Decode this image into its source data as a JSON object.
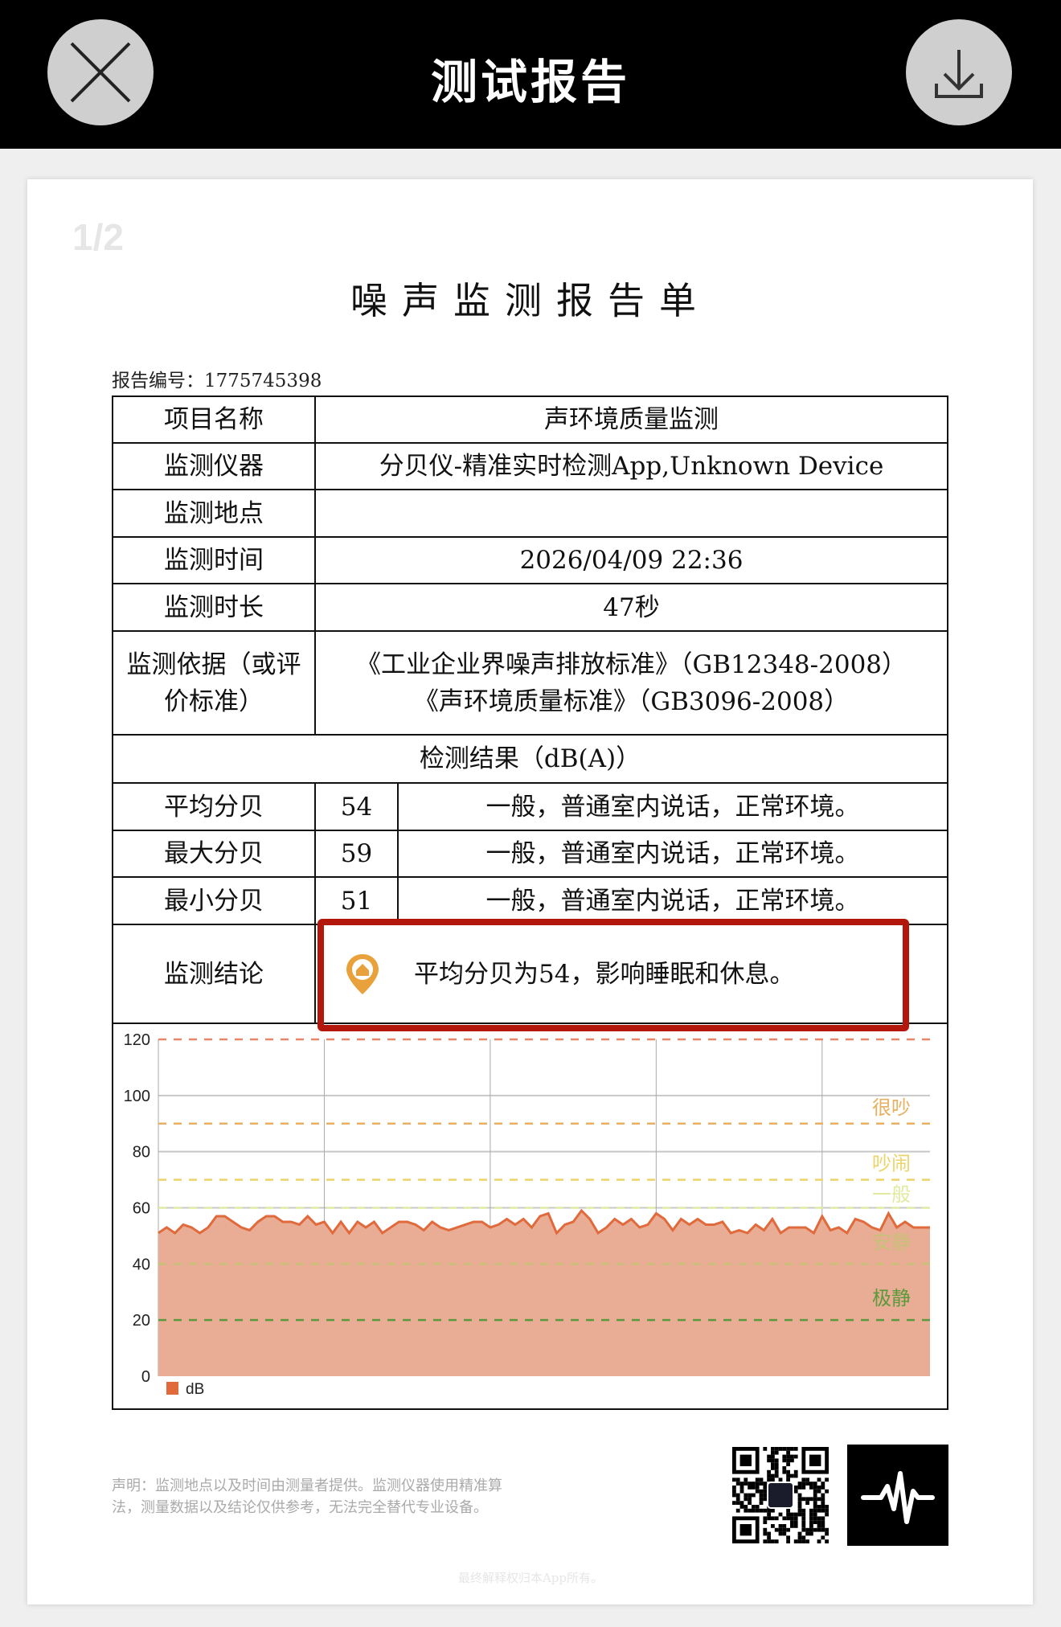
{
  "header": {
    "title": "测试报告",
    "close_icon": "close-icon",
    "download_icon": "download-icon"
  },
  "page_indicator": "1/2",
  "report": {
    "title": "噪声监测报告单",
    "report_no": "报告编号：1775745398",
    "rows": [
      {
        "label": "项目名称",
        "value": "声环境质量监测"
      },
      {
        "label": "监测仪器",
        "value": "分贝仪-精准实时检测App,Unknown Device"
      },
      {
        "label": "监测地点",
        "value": ""
      },
      {
        "label": "监测时间",
        "value": "2026/04/09 22:36"
      },
      {
        "label": "监测时长",
        "value": "47秒"
      }
    ],
    "basis_label": "监测依据（或评价标准）",
    "basis_lines": [
      "《工业企业界噪声排放标准》（GB12348-2008）",
      "《声环境质量标准》（GB3096-2008）"
    ],
    "results_header": "检测结果（dB(A)）",
    "results": [
      {
        "label": "平均分贝",
        "value": "54",
        "desc": "一般，普通室内说话，正常环境。"
      },
      {
        "label": "最大分贝",
        "value": "59",
        "desc": "一般，普通室内说话，正常环境。"
      },
      {
        "label": "最小分贝",
        "value": "51",
        "desc": "一般，普通室内说话，正常环境。"
      }
    ],
    "conclusion_label": "监测结论",
    "conclusion": "平均分贝为54，影响睡眠和休息。",
    "highlight_color": "#b3170b"
  },
  "chart_data": {
    "type": "area",
    "ylim": [
      0,
      120
    ],
    "yticks": [
      "0",
      "20",
      "40",
      "60",
      "80",
      "100",
      "120"
    ],
    "legend": "dB",
    "legend_placement": "bottom-left",
    "series_color": "#e06a3c",
    "fill_color": "#e8ad94",
    "thresholds": [
      {
        "value": 120,
        "color": "#e8866a"
      },
      {
        "value": 90,
        "color": "#e8b060",
        "label": "很吵",
        "label_at": 96
      },
      {
        "value": 70,
        "color": "#ecd46a",
        "label": "吵闹",
        "label_at": 76
      },
      {
        "value": 60,
        "color": "#e2eaa0",
        "label": "一般",
        "label_at": 65
      },
      {
        "value": 40,
        "color": "#c8c078",
        "label": "安静",
        "label_at": 48
      },
      {
        "value": 20,
        "color": "#5a9a3c",
        "label": "极静",
        "label_at": 28
      }
    ],
    "values": [
      51,
      53,
      51,
      54,
      53,
      51,
      53,
      57,
      57,
      55,
      53,
      52,
      55,
      57,
      57,
      55,
      55,
      54,
      57,
      54,
      55,
      51,
      55,
      51,
      55,
      53,
      55,
      51,
      53,
      55,
      55,
      54,
      52,
      55,
      53,
      52,
      53,
      54,
      55,
      55,
      53,
      54,
      56,
      54,
      56,
      53,
      57,
      58,
      51,
      54,
      55,
      59,
      56,
      51,
      53,
      56,
      54,
      56,
      53,
      54,
      58,
      56,
      52,
      56,
      54,
      56,
      54,
      54,
      55,
      51,
      52,
      51,
      54,
      52,
      56,
      51,
      53,
      53,
      53,
      51,
      57,
      52,
      53,
      51,
      56,
      55,
      53,
      52,
      58,
      53,
      55,
      53,
      53,
      53
    ]
  },
  "disclaimer": [
    "声明：监测地点以及时间由测量者提供。监测仪器使用精准算",
    "法，测量数据以及结论仅供参考，无法完全替代专业设备。"
  ],
  "footer": "最终解释权归本App所有。",
  "app_logo_icon": "waveform-icon"
}
